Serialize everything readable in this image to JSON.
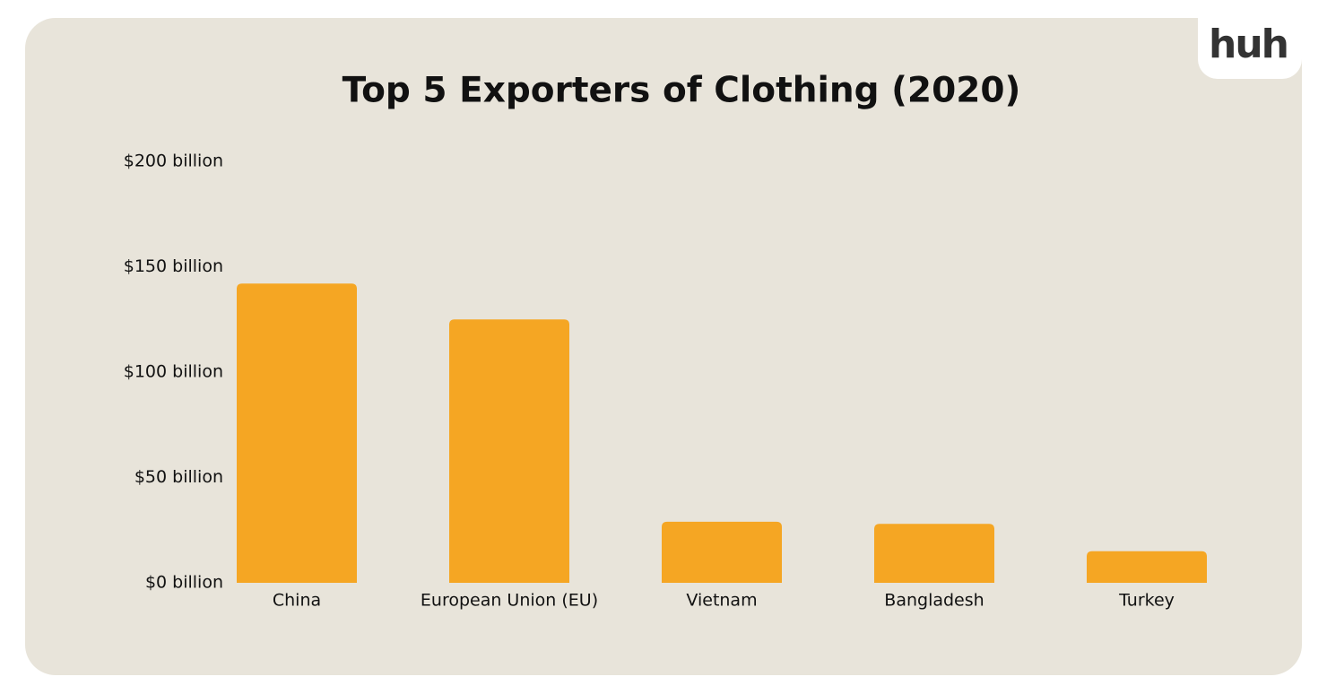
{
  "logo": "huh",
  "chart_data": {
    "type": "bar",
    "title": "Top 5 Exporters of Clothing (2020)",
    "categories": [
      "China",
      "European Union (EU)",
      "Vietnam",
      "Bangladesh",
      "Turkey"
    ],
    "values": [
      142,
      125,
      29,
      28,
      15
    ],
    "color": "#f5a623",
    "ylim": [
      0,
      200
    ],
    "yticks": [
      {
        "value": 0,
        "label": "$0 billion"
      },
      {
        "value": 50,
        "label": "$50 billion"
      },
      {
        "value": 100,
        "label": "$100 billion"
      },
      {
        "value": 150,
        "label": "$150 billion"
      },
      {
        "value": 200,
        "label": "$200 billion"
      }
    ],
    "grid": false
  }
}
